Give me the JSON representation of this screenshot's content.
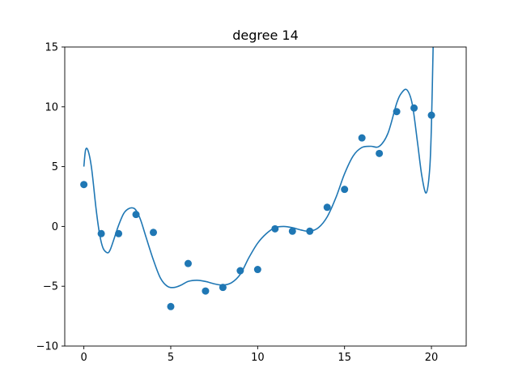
{
  "chart_data": {
    "type": "scatter",
    "title": "degree 14",
    "xlabel": "",
    "ylabel": "",
    "xlim": [
      -1.1,
      22
    ],
    "ylim": [
      -10,
      15
    ],
    "xticks": [
      0,
      5,
      10,
      15,
      20
    ],
    "yticks": [
      -10,
      -5,
      0,
      5,
      10,
      15
    ],
    "grid": false,
    "color": "#1f77b4",
    "points": {
      "x": [
        0,
        1,
        2,
        3,
        4,
        5,
        6,
        7,
        8,
        9,
        10,
        11,
        12,
        13,
        14,
        15,
        16,
        17,
        18,
        19,
        20
      ],
      "y": [
        3.5,
        -0.6,
        -0.6,
        1.0,
        -0.5,
        -6.7,
        -3.1,
        -5.4,
        -5.1,
        -3.7,
        -3.6,
        -0.2,
        -0.4,
        -0.4,
        1.6,
        3.1,
        7.4,
        6.1,
        9.6,
        9.9,
        9.3
      ]
    },
    "fit_curve": {
      "x": [
        0,
        0.1,
        0.25,
        0.45,
        0.7,
        0.9,
        1.1,
        1.35,
        1.5,
        1.7,
        2.0,
        2.3,
        2.6,
        2.9,
        3.1,
        3.3,
        3.6,
        4.0,
        4.4,
        4.8,
        5.2,
        5.6,
        6.0,
        6.5,
        7.0,
        7.5,
        8.0,
        8.5,
        9.0,
        9.5,
        10.0,
        10.5,
        11.0,
        11.5,
        12.0,
        12.5,
        13.0,
        13.5,
        14.0,
        14.5,
        15.0,
        15.5,
        16.0,
        16.5,
        17.0,
        17.5,
        18.0,
        18.3,
        18.6,
        18.9,
        19.2,
        19.45,
        19.7,
        19.9,
        20.0,
        20.1
      ],
      "y": [
        5.0,
        6.4,
        6.3,
        4.8,
        1.5,
        -0.6,
        -1.8,
        -2.2,
        -2.0,
        -1.2,
        0.1,
        1.1,
        1.5,
        1.5,
        1.1,
        0.4,
        -1.0,
        -2.8,
        -4.3,
        -5.0,
        -5.1,
        -4.9,
        -4.6,
        -4.5,
        -4.6,
        -4.8,
        -4.9,
        -4.7,
        -4.0,
        -2.6,
        -1.4,
        -0.6,
        -0.1,
        0.0,
        -0.1,
        -0.3,
        -0.4,
        -0.1,
        0.8,
        2.4,
        4.4,
        5.9,
        6.6,
        6.7,
        6.7,
        7.8,
        10.3,
        11.2,
        11.4,
        10.2,
        7.0,
        4.2,
        2.8,
        4.8,
        8.5,
        15.2
      ]
    }
  }
}
